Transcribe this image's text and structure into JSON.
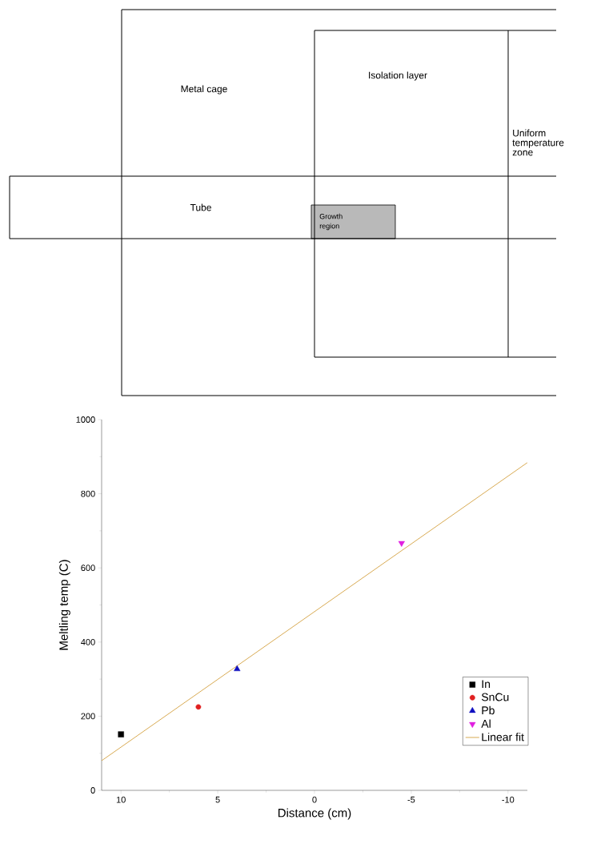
{
  "chart_data": {
    "type": "scatter",
    "xlabel": "Distance (cm)",
    "ylabel": "Meltling temp (C)",
    "annotations": [
      "Metal cage",
      "Isolation layer",
      "Uniform temperature zone",
      "Tube",
      "Growth region"
    ],
    "xlim": [
      11,
      -11
    ],
    "ylim": [
      0,
      1000
    ],
    "xticks": [
      10,
      5,
      0,
      -5,
      -10
    ],
    "yticks": [
      0,
      200,
      400,
      600,
      800,
      1000
    ],
    "grid": false,
    "legend": "bottom right",
    "series": [
      {
        "name": "In",
        "marker": "square",
        "color": "#000000",
        "x": [
          10
        ],
        "values": [
          151
        ]
      },
      {
        "name": "SnCu",
        "marker": "circle",
        "color": "#e02020",
        "x": [
          6
        ],
        "values": [
          225
        ]
      },
      {
        "name": "Pb",
        "marker": "triangle",
        "color": "#1010c0",
        "x": [
          4
        ],
        "values": [
          327
        ]
      },
      {
        "name": "Al",
        "marker": "triangle-down",
        "color": "#e020e0",
        "x": [
          -4.5
        ],
        "values": [
          667
        ]
      },
      {
        "name": "Linear fit",
        "type": "line",
        "marker": "none",
        "line_style": "solid",
        "color": "#d4a040",
        "x": [
          11,
          -11
        ],
        "values": [
          80,
          884
        ]
      }
    ]
  }
}
